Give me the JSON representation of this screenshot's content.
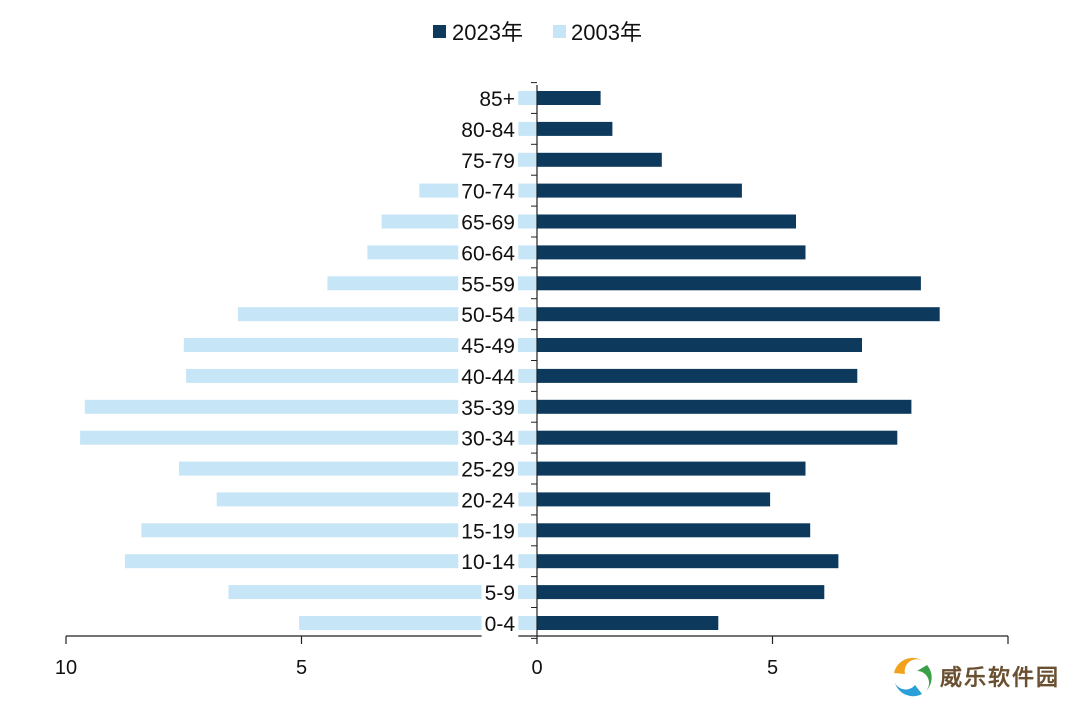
{
  "chart_data": {
    "type": "bar",
    "orientation": "horizontal",
    "layout": "population-pyramid",
    "categories": [
      "85+",
      "80-84",
      "75-79",
      "70-74",
      "65-69",
      "60-64",
      "55-59",
      "50-54",
      "45-49",
      "40-44",
      "35-39",
      "30-34",
      "25-29",
      "20-24",
      "15-19",
      "10-14",
      "5-9",
      "0-4"
    ],
    "series": [
      {
        "name": "2023年",
        "side": "right",
        "color": "#0d3a5c",
        "values": [
          1.35,
          1.6,
          2.65,
          4.35,
          5.5,
          5.7,
          8.15,
          8.55,
          6.9,
          6.8,
          7.95,
          7.65,
          5.7,
          4.95,
          5.8,
          6.4,
          6.1,
          3.85
        ]
      },
      {
        "name": "2003年",
        "side": "left",
        "color": "#c6e6f8",
        "values": [
          0.4,
          0.7,
          0.6,
          2.5,
          3.3,
          3.6,
          4.45,
          6.35,
          7.5,
          7.45,
          9.6,
          9.7,
          7.6,
          6.8,
          8.4,
          8.75,
          6.55,
          5.05
        ]
      }
    ],
    "x_ticks": [
      {
        "value": -10,
        "label": "10"
      },
      {
        "value": -5,
        "label": "5"
      },
      {
        "value": 0,
        "label": "0"
      },
      {
        "value": 5,
        "label": "5"
      },
      {
        "value": 10,
        "label": ""
      }
    ],
    "xlim": [
      -10,
      10
    ],
    "grid": false,
    "legend_position": "top-center",
    "title": "",
    "xlabel": "",
    "ylabel": ""
  },
  "watermark": {
    "text": "威乐软件园",
    "logo_icon": "swirl-logo-icon"
  }
}
